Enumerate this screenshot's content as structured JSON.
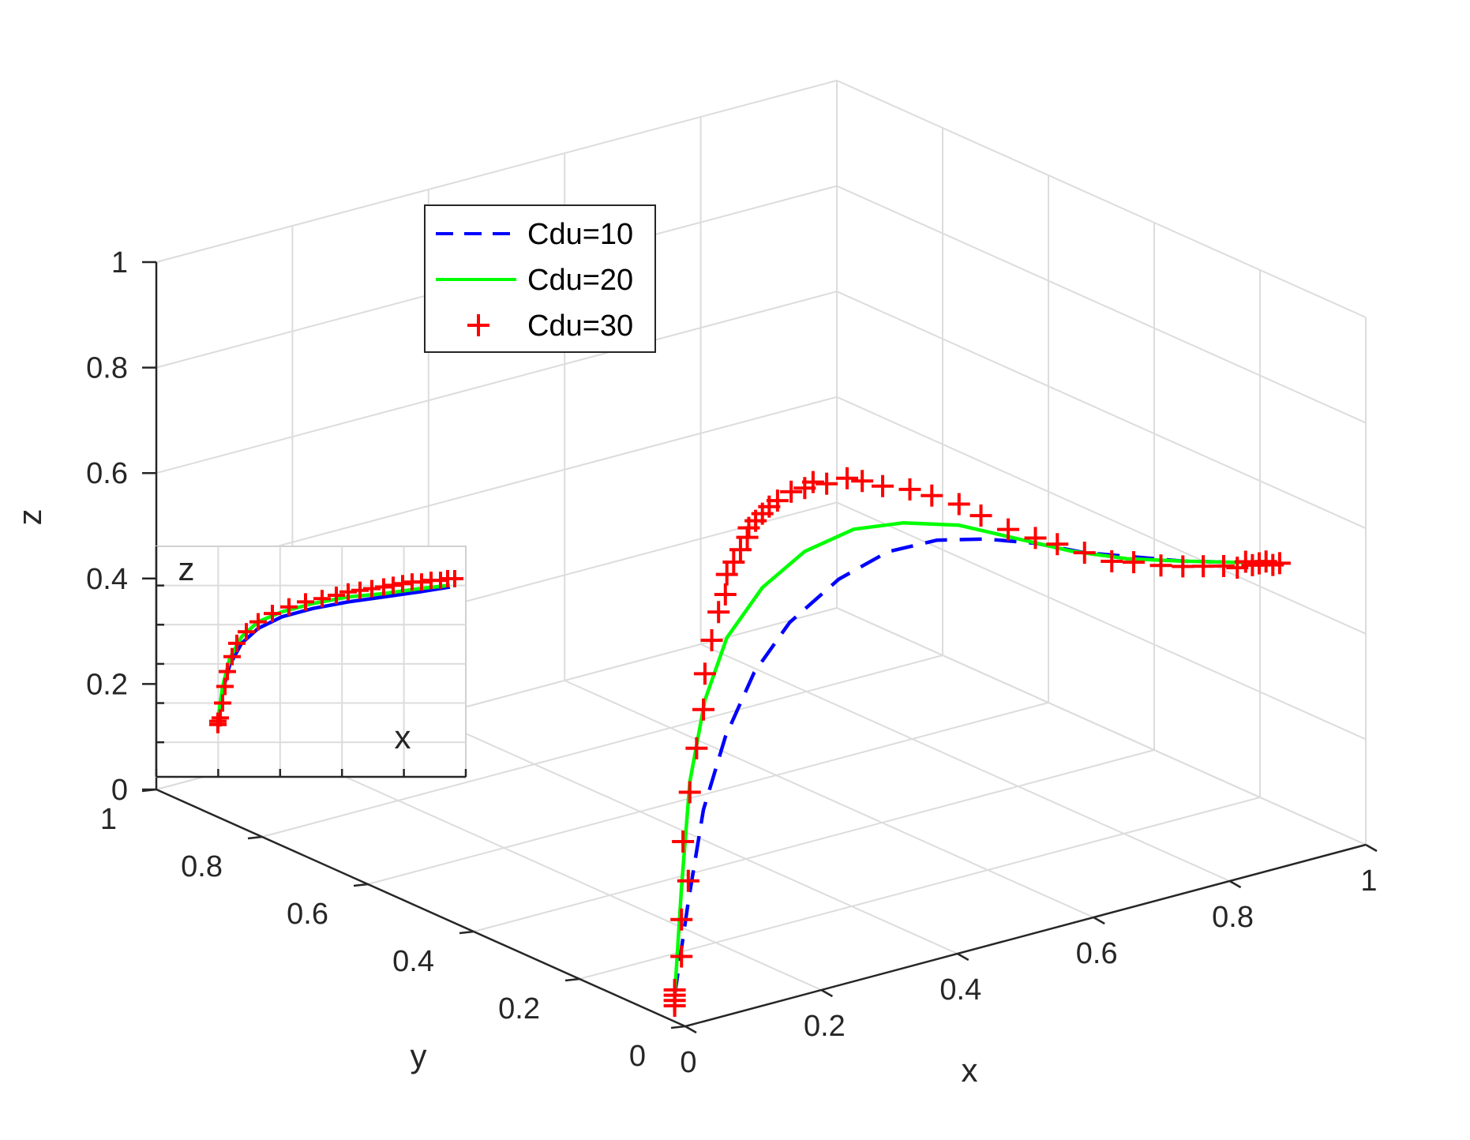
{
  "chart_data": {
    "type": "line",
    "projection": "3d",
    "xlabel": "x",
    "ylabel": "y",
    "zlabel": "z",
    "xlim": [
      0,
      1
    ],
    "ylim": [
      0,
      1
    ],
    "zlim": [
      0,
      1
    ],
    "x_ticks": [
      "0",
      "0.2",
      "0.4",
      "0.6",
      "0.8",
      "1"
    ],
    "y_ticks": [
      "0",
      "0.2",
      "0.4",
      "0.6",
      "0.8",
      "1"
    ],
    "z_ticks": [
      "0",
      "0.2",
      "0.4",
      "0.6",
      "0.8",
      "1"
    ],
    "grid": true,
    "legend": {
      "location": "upper-middle",
      "entries": [
        "Cdu=10",
        "Cdu=20",
        "Cdu=30"
      ]
    },
    "series": [
      {
        "name": "Cdu=10",
        "style": "dashed",
        "color": "#0000ff",
        "points": [
          [
            0.0,
            0.02,
            0.05
          ],
          [
            0.02,
            0.02,
            0.22
          ],
          [
            0.05,
            0.03,
            0.38
          ],
          [
            0.09,
            0.04,
            0.5
          ],
          [
            0.14,
            0.05,
            0.6
          ],
          [
            0.2,
            0.06,
            0.67
          ],
          [
            0.28,
            0.07,
            0.72
          ],
          [
            0.36,
            0.08,
            0.74
          ],
          [
            0.44,
            0.09,
            0.73
          ],
          [
            0.52,
            0.1,
            0.7
          ],
          [
            0.6,
            0.11,
            0.66
          ],
          [
            0.68,
            0.12,
            0.61
          ],
          [
            0.76,
            0.13,
            0.57
          ],
          [
            0.84,
            0.14,
            0.53
          ],
          [
            0.92,
            0.14,
            0.5
          ],
          [
            0.97,
            0.15,
            0.48
          ]
        ]
      },
      {
        "name": "Cdu=20",
        "style": "solid",
        "color": "#00ff00",
        "points": [
          [
            0.0,
            0.02,
            0.05
          ],
          [
            0.01,
            0.02,
            0.25
          ],
          [
            0.03,
            0.03,
            0.44
          ],
          [
            0.06,
            0.04,
            0.58
          ],
          [
            0.1,
            0.05,
            0.68
          ],
          [
            0.16,
            0.06,
            0.75
          ],
          [
            0.23,
            0.07,
            0.79
          ],
          [
            0.31,
            0.08,
            0.8
          ],
          [
            0.39,
            0.09,
            0.78
          ],
          [
            0.48,
            0.1,
            0.74
          ],
          [
            0.57,
            0.11,
            0.68
          ],
          [
            0.66,
            0.12,
            0.62
          ],
          [
            0.75,
            0.13,
            0.57
          ],
          [
            0.84,
            0.14,
            0.53
          ],
          [
            0.92,
            0.14,
            0.5
          ],
          [
            0.97,
            0.15,
            0.48
          ]
        ]
      },
      {
        "name": "Cdu=30",
        "style": "markers",
        "marker": "+",
        "color": "#ff0000",
        "points": [
          [
            0.0,
            0.02,
            0.03
          ],
          [
            0.0,
            0.02,
            0.04
          ],
          [
            0.0,
            0.02,
            0.05
          ],
          [
            0.0,
            0.02,
            0.06
          ],
          [
            0.01,
            0.02,
            0.12
          ],
          [
            0.01,
            0.02,
            0.19
          ],
          [
            0.02,
            0.02,
            0.26
          ],
          [
            0.02,
            0.03,
            0.33
          ],
          [
            0.03,
            0.03,
            0.42
          ],
          [
            0.04,
            0.03,
            0.5
          ],
          [
            0.05,
            0.03,
            0.57
          ],
          [
            0.06,
            0.04,
            0.63
          ],
          [
            0.07,
            0.04,
            0.69
          ],
          [
            0.08,
            0.04,
            0.74
          ],
          [
            0.09,
            0.04,
            0.77
          ],
          [
            0.1,
            0.05,
            0.8
          ],
          [
            0.11,
            0.05,
            0.82
          ],
          [
            0.12,
            0.05,
            0.84
          ],
          [
            0.13,
            0.05,
            0.86
          ],
          [
            0.14,
            0.06,
            0.87
          ],
          [
            0.15,
            0.06,
            0.88
          ],
          [
            0.16,
            0.06,
            0.89
          ],
          [
            0.17,
            0.06,
            0.9
          ],
          [
            0.19,
            0.07,
            0.9
          ],
          [
            0.21,
            0.07,
            0.91
          ],
          [
            0.23,
            0.07,
            0.91
          ],
          [
            0.25,
            0.08,
            0.91
          ],
          [
            0.27,
            0.08,
            0.9
          ],
          [
            0.3,
            0.08,
            0.9
          ],
          [
            0.33,
            0.09,
            0.88
          ],
          [
            0.36,
            0.09,
            0.86
          ],
          [
            0.4,
            0.09,
            0.84
          ],
          [
            0.44,
            0.1,
            0.81
          ],
          [
            0.48,
            0.1,
            0.78
          ],
          [
            0.52,
            0.11,
            0.74
          ],
          [
            0.56,
            0.11,
            0.7
          ],
          [
            0.6,
            0.11,
            0.67
          ],
          [
            0.64,
            0.12,
            0.64
          ],
          [
            0.68,
            0.12,
            0.61
          ],
          [
            0.72,
            0.12,
            0.58
          ],
          [
            0.76,
            0.13,
            0.56
          ],
          [
            0.8,
            0.13,
            0.54
          ],
          [
            0.84,
            0.14,
            0.52
          ],
          [
            0.87,
            0.14,
            0.51
          ],
          [
            0.9,
            0.14,
            0.5
          ],
          [
            0.92,
            0.14,
            0.49
          ],
          [
            0.94,
            0.15,
            0.49
          ],
          [
            0.95,
            0.15,
            0.48
          ],
          [
            0.96,
            0.15,
            0.48
          ],
          [
            0.97,
            0.15,
            0.48
          ],
          [
            0.98,
            0.15,
            0.47
          ],
          [
            0.99,
            0.15,
            0.47
          ]
        ]
      }
    ],
    "inset": {
      "xlabel": "x",
      "zlabel": "z",
      "view": "x-z projection",
      "series": [
        {
          "name": "Cdu=10",
          "points": [
            [
              0.0,
              0.05
            ],
            [
              0.02,
              0.22
            ],
            [
              0.05,
              0.38
            ],
            [
              0.1,
              0.51
            ],
            [
              0.17,
              0.6
            ],
            [
              0.27,
              0.67
            ],
            [
              0.4,
              0.72
            ],
            [
              0.55,
              0.76
            ],
            [
              0.7,
              0.79
            ],
            [
              0.85,
              0.82
            ],
            [
              0.98,
              0.85
            ]
          ]
        },
        {
          "name": "Cdu=20",
          "points": [
            [
              0.0,
              0.05
            ],
            [
              0.02,
              0.25
            ],
            [
              0.05,
              0.42
            ],
            [
              0.1,
              0.55
            ],
            [
              0.17,
              0.64
            ],
            [
              0.27,
              0.7
            ],
            [
              0.4,
              0.75
            ],
            [
              0.55,
              0.79
            ],
            [
              0.7,
              0.81
            ],
            [
              0.85,
              0.84
            ],
            [
              0.98,
              0.86
            ]
          ]
        },
        {
          "name": "Cdu=30",
          "points": [
            [
              0.0,
              0.02
            ],
            [
              0.0,
              0.04
            ],
            [
              0.01,
              0.06
            ],
            [
              0.02,
              0.15
            ],
            [
              0.03,
              0.25
            ],
            [
              0.04,
              0.34
            ],
            [
              0.06,
              0.43
            ],
            [
              0.08,
              0.51
            ],
            [
              0.12,
              0.58
            ],
            [
              0.17,
              0.64
            ],
            [
              0.23,
              0.69
            ],
            [
              0.3,
              0.73
            ],
            [
              0.37,
              0.76
            ],
            [
              0.44,
              0.78
            ],
            [
              0.5,
              0.8
            ],
            [
              0.55,
              0.82
            ],
            [
              0.6,
              0.83
            ],
            [
              0.65,
              0.84
            ],
            [
              0.7,
              0.85
            ],
            [
              0.74,
              0.86
            ],
            [
              0.78,
              0.87
            ],
            [
              0.82,
              0.88
            ],
            [
              0.86,
              0.88
            ],
            [
              0.9,
              0.89
            ],
            [
              0.94,
              0.89
            ],
            [
              0.97,
              0.9
            ],
            [
              1.0,
              0.9
            ]
          ]
        }
      ]
    }
  }
}
